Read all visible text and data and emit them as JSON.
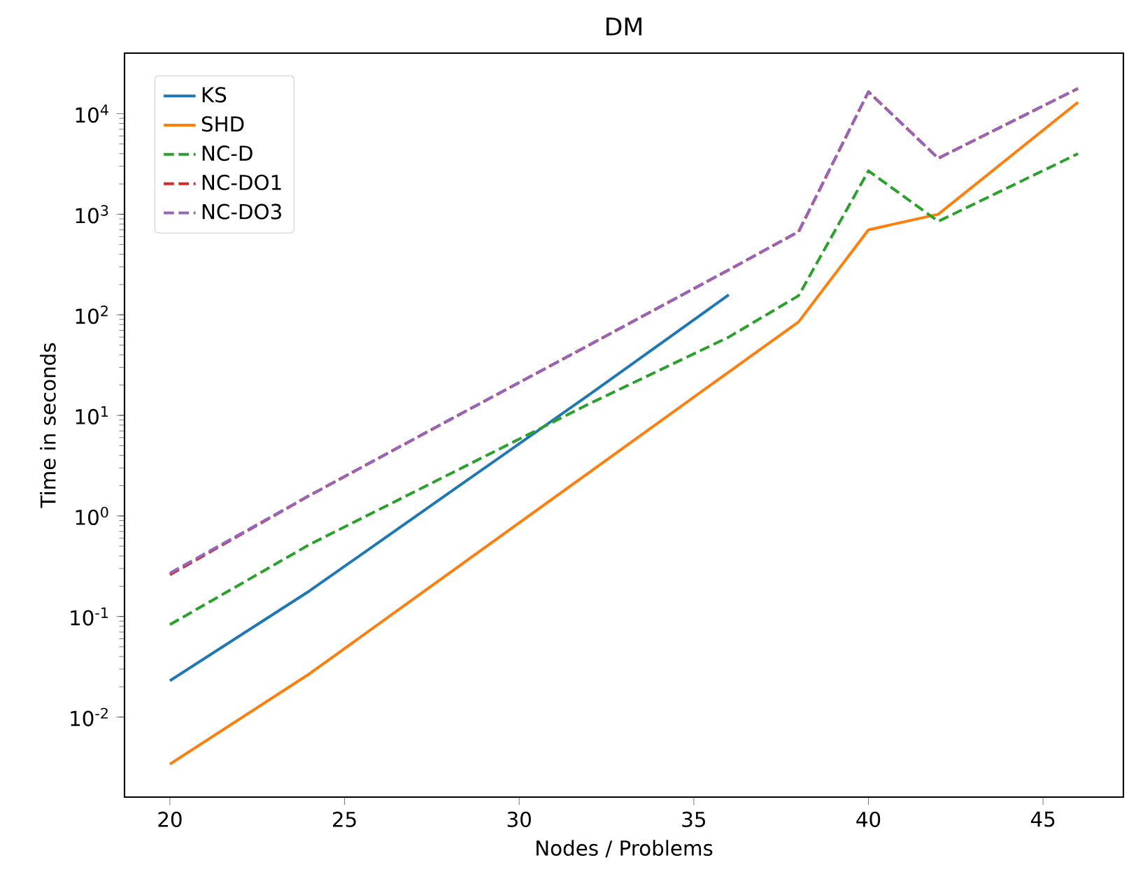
{
  "chart_data": {
    "type": "line",
    "title": "DM",
    "xlabel": "Nodes / Problems",
    "ylabel": "Time in seconds",
    "log": "y",
    "xlim": [
      18.7,
      47.3
    ],
    "xticks": [
      20,
      25,
      30,
      35,
      40,
      45
    ],
    "ylim": [
      0.0016,
      40000
    ],
    "yticks": [
      {
        "value": 0.01,
        "label": "10$^{-2}$"
      },
      {
        "value": 0.1,
        "label": "10$^{-1}$"
      },
      {
        "value": 1,
        "label": "10$^{0}$"
      },
      {
        "value": 10,
        "label": "10$^{1}$"
      },
      {
        "value": 100,
        "label": "10$^{2}$"
      },
      {
        "value": 1000,
        "label": "10$^{3}$"
      },
      {
        "value": 10000,
        "label": "10$^{4}$"
      }
    ],
    "grid": false,
    "legend": "top left",
    "marker": "none",
    "series": [
      {
        "name": "KS",
        "color": "#1f77b4",
        "line_style": "solid",
        "x": [
          20,
          24,
          28,
          32,
          36
        ],
        "values": [
          0.023,
          0.18,
          1.7,
          16,
          158
        ]
      },
      {
        "name": "SHD",
        "color": "#ff7f0e",
        "line_style": "solid",
        "x": [
          20,
          24,
          28,
          32,
          36,
          38,
          40,
          42,
          46
        ],
        "values": [
          0.0034,
          0.027,
          0.27,
          2.7,
          27,
          85,
          700,
          1000,
          13000
        ]
      },
      {
        "name": "NC-D",
        "color": "#2ca02c",
        "line_style": "dashed",
        "x": [
          20,
          24,
          28,
          32,
          36,
          38,
          40,
          42,
          46
        ],
        "values": [
          0.083,
          0.52,
          2.6,
          13,
          60,
          155,
          2700,
          850,
          4000
        ]
      },
      {
        "name": "NC-DO1",
        "color": "#d62728",
        "line_style": "dashed",
        "x": [
          20,
          24,
          28,
          32,
          36,
          38,
          40,
          42,
          46
        ],
        "values": [
          0.26,
          1.6,
          9,
          50,
          280,
          670,
          16500,
          3600,
          17800
        ]
      },
      {
        "name": "NC-DO3",
        "color": "#9467bd",
        "line_style": "dashed",
        "x": [
          20,
          24,
          28,
          32,
          36,
          38,
          40,
          42,
          46
        ],
        "values": [
          0.27,
          1.6,
          9,
          50,
          280,
          670,
          16500,
          3600,
          17800
        ]
      }
    ]
  }
}
